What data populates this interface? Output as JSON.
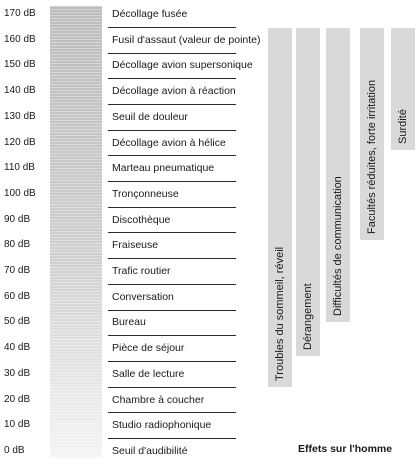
{
  "scale": {
    "db_labels": [
      "170 dB",
      "160 dB",
      "150 dB",
      "140 dB",
      "130 dB",
      "120 dB",
      "110 dB",
      "100 dB",
      "90 dB",
      "80 dB",
      "70 dB",
      "60 dB",
      "50 dB",
      "40 dB",
      "30 dB",
      "20 dB",
      "10 dB",
      "0 dB"
    ],
    "sources": [
      "Décollage fusée",
      "Fusil d'assaut (valeur de pointe)",
      "Décollage avion supersonique",
      "Décollage avion à réaction",
      "Seuil de douleur",
      "Décollage avion à hélice",
      "Marteau pneumatique",
      "Tronçonneuse",
      "Discothèque",
      "Fraiseuse",
      "Trafic routier",
      "Conversation",
      "Bureau",
      "Pièce de séjour",
      "Salle de lecture",
      "Chambre à coucher",
      "Studio radiophonique",
      "Seuil d'audibilité"
    ]
  },
  "effects": [
    {
      "label": "Troubles du sommeil, réveil",
      "from_db": 25,
      "to_db": 160
    },
    {
      "label": "Dérangement",
      "from_db": 37,
      "to_db": 160
    },
    {
      "label": "Difficultés de communication",
      "from_db": 50,
      "to_db": 160
    },
    {
      "label": "Facultés réduites, forte irritation",
      "from_db": 82,
      "to_db": 160
    },
    {
      "label": "Surdité",
      "from_db": 117,
      "to_db": 160
    }
  ],
  "caption": "Effets sur l'homme",
  "colors": {
    "gauge_top": "#bdbdbd",
    "gauge_bottom": "#f4f4f4",
    "effect_bar": "#d9d9d9",
    "line": "#2a2a2a"
  }
}
